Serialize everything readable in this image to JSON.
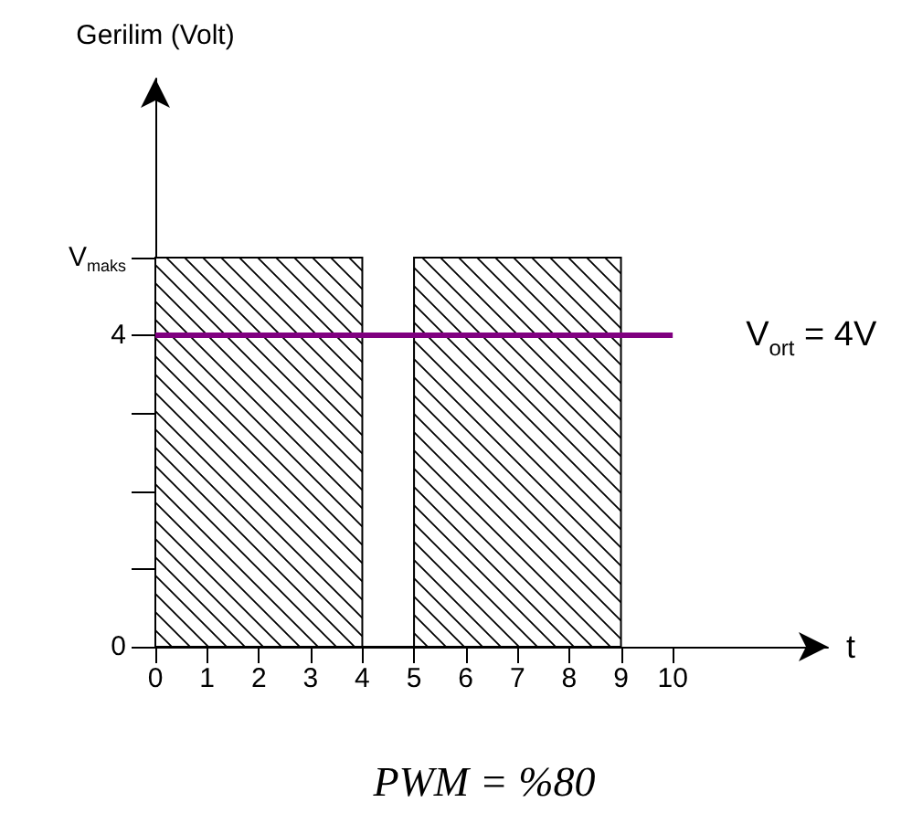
{
  "chart_data": {
    "type": "histogram",
    "ylabel": "Gerilim (Volt)",
    "xlabel": "t",
    "bins": [
      0,
      4,
      5,
      9
    ],
    "values": [
      5,
      0,
      5
    ],
    "color": "#000000",
    "xlim": [
      0,
      13
    ],
    "xticks": [
      0,
      1,
      2,
      3,
      4,
      5,
      6,
      7,
      8,
      9,
      10
    ],
    "ylim": [
      0,
      7.3
    ],
    "yticks": [
      0,
      {
        "value": 1,
        "label": null
      },
      {
        "value": 2,
        "label": null
      },
      {
        "value": 3,
        "label": null
      },
      4,
      {
        "value": 5,
        "label": "V$_{maks}$"
      }
    ],
    "ref_lines": [
      {
        "axis": "y",
        "value": 4,
        "label": "V$_{ort}$ = 4V",
        "color": "#800080"
      }
    ],
    "annotations": [
      "PWM = %80"
    ],
    "grid": false
  }
}
